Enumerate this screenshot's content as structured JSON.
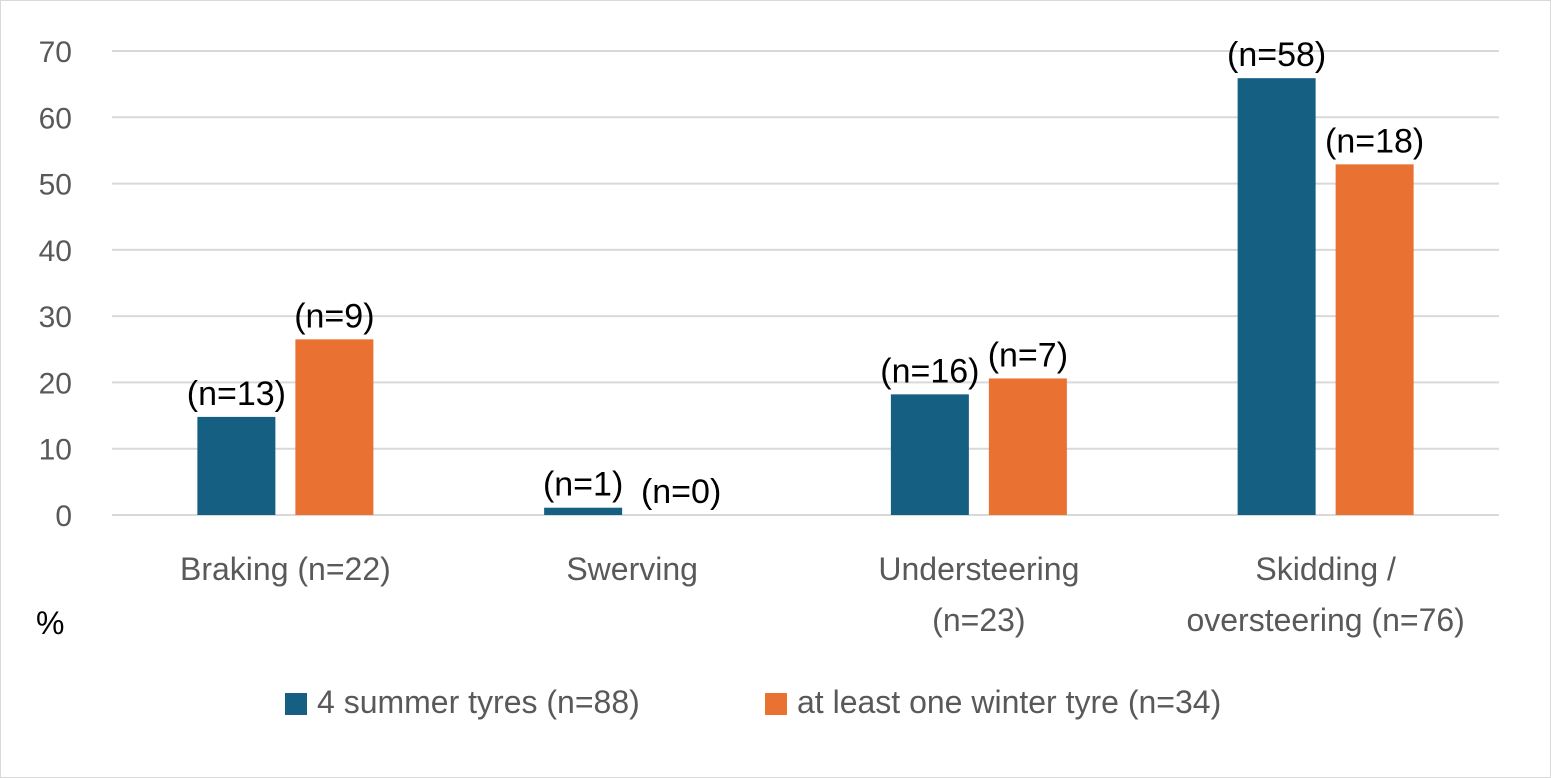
{
  "chart_data": {
    "type": "bar",
    "title": "",
    "xlabel": "",
    "ylabel": "%",
    "ylim": [
      0,
      70
    ],
    "yticks": [
      0,
      10,
      20,
      30,
      40,
      50,
      60,
      70
    ],
    "grid": true,
    "legend_position": "bottom",
    "categories": [
      [
        "Braking (n=22)"
      ],
      [
        "Swerving"
      ],
      [
        "Understeering",
        "(n=23)"
      ],
      [
        "Skidding /",
        "oversteering (n=76)"
      ]
    ],
    "series": [
      {
        "name": "4 summer tyres (n=88)",
        "color": "#156082",
        "values": [
          14.8,
          1.1,
          18.2,
          65.9
        ],
        "labels": [
          "(n=13)",
          "(n=1)",
          "(n=16)",
          "(n=58)"
        ]
      },
      {
        "name": "at least one winter tyre (n=34)",
        "color": "#E97132",
        "values": [
          26.5,
          0,
          20.6,
          52.9
        ],
        "labels": [
          "(n=9)",
          "(n=0)",
          "(n=7)",
          "(n=18)"
        ]
      }
    ]
  }
}
